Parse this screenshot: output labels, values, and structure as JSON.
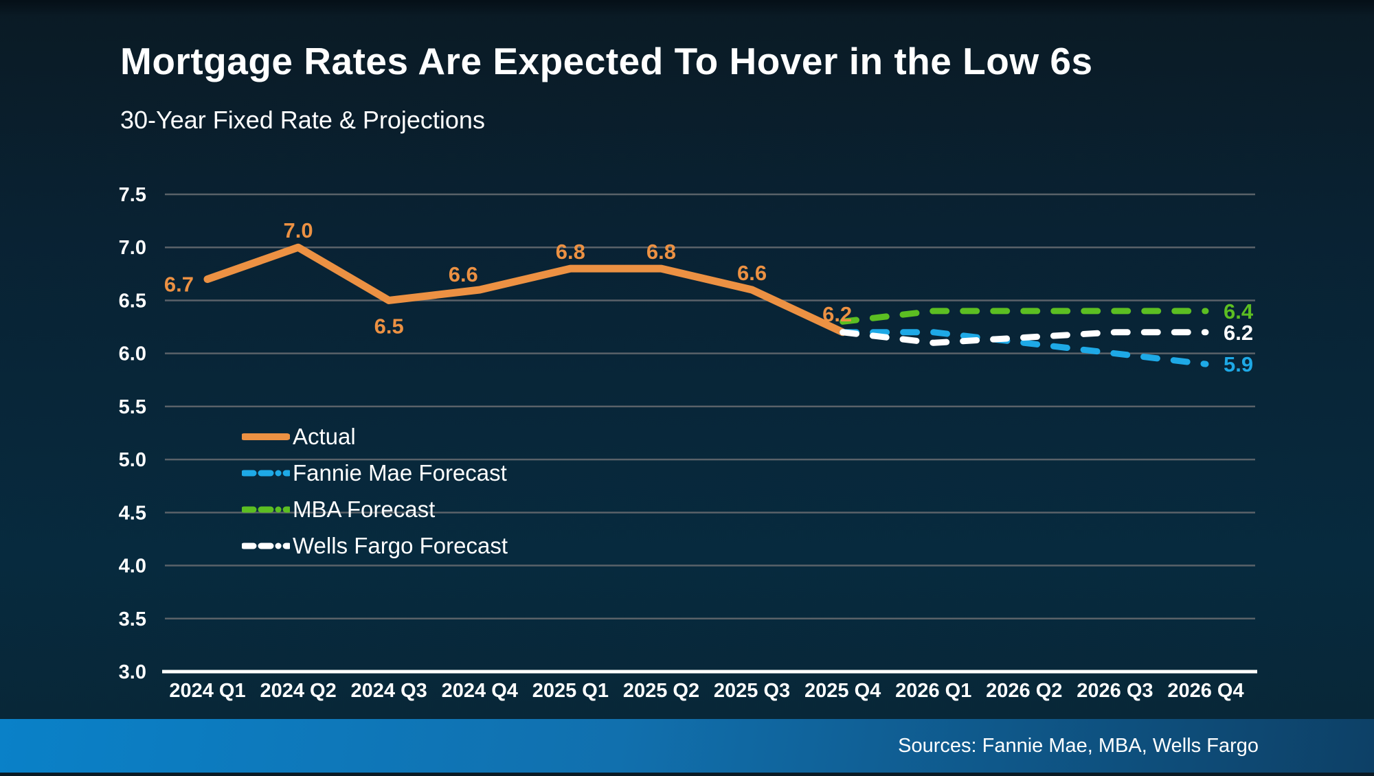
{
  "header": {
    "title": "Mortgage Rates Are Expected To Hover in the Low 6s",
    "subtitle": "30-Year Fixed Rate & Projections"
  },
  "footer": {
    "sources": "Sources: Fannie Mae, MBA, Wells Fargo"
  },
  "colors": {
    "background": "#082435",
    "gridline": "#5a6269",
    "axis_line": "#ffffff",
    "axis_text": "#ffffff",
    "footer_gradient_left": "#0a81c8",
    "footer_gradient_right": "#0d4066"
  },
  "chart_data": {
    "type": "line",
    "title": "30-Year Fixed Rate & Projections",
    "categories": [
      "2024 Q1",
      "2024 Q2",
      "2024 Q3",
      "2024 Q4",
      "2025 Q1",
      "2025 Q2",
      "2025 Q3",
      "2025 Q4",
      "2026 Q1",
      "2026 Q2",
      "2026 Q3",
      "2026 Q4"
    ],
    "ylim": [
      3.0,
      7.5
    ],
    "ytick_step": 0.5,
    "yticks": [
      "7.5",
      "7.0",
      "6.5",
      "6.0",
      "5.5",
      "5.0",
      "4.5",
      "4.0",
      "3.5",
      "3.0"
    ],
    "grid": true,
    "legend_position": "inside-left",
    "series": [
      {
        "name": "Actual",
        "key": "actual",
        "style": "solid",
        "color": "#ec9143",
        "start_index": 0,
        "values": [
          6.7,
          7.0,
          6.5,
          6.6,
          6.8,
          6.8,
          6.6,
          6.2
        ],
        "point_labels": [
          "6.7",
          "7.0",
          "6.5",
          "6.6",
          "6.8",
          "6.8",
          "6.6",
          "6.2"
        ]
      },
      {
        "name": "Fannie Mae Forecast",
        "key": "fannie_mae",
        "style": "dashed",
        "color": "#1ea9e6",
        "start_index": 7,
        "values": [
          6.2,
          6.2,
          6.1,
          6.0,
          5.9
        ],
        "end_label": "5.9"
      },
      {
        "name": "MBA Forecast",
        "key": "mba",
        "style": "dashed",
        "color": "#5cbe22",
        "start_index": 7,
        "values": [
          6.3,
          6.4,
          6.4,
          6.4,
          6.4
        ],
        "end_label": "6.4"
      },
      {
        "name": "Wells Fargo Forecast",
        "key": "wells_fargo",
        "style": "dashed",
        "color": "#ffffff",
        "start_index": 7,
        "values": [
          6.2,
          6.1,
          6.15,
          6.2,
          6.2
        ],
        "end_label": "6.2"
      }
    ]
  }
}
